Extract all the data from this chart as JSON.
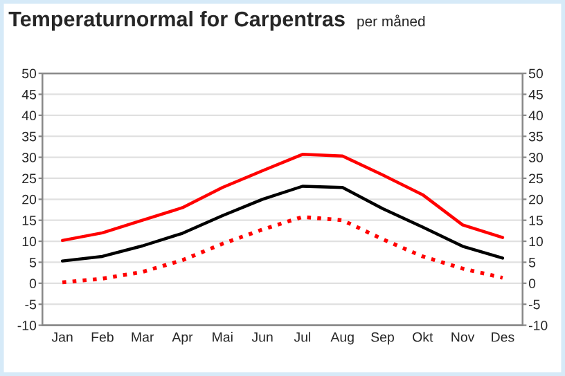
{
  "chart_data": {
    "type": "line",
    "title": "Temperaturnormal for Carpentras",
    "subtitle": "per måned",
    "categories": [
      "Jan",
      "Feb",
      "Mar",
      "Apr",
      "Mai",
      "Jun",
      "Jul",
      "Aug",
      "Sep",
      "Okt",
      "Nov",
      "Des"
    ],
    "series": [
      {
        "color": "#ff0000",
        "line_style": "solid",
        "values": [
          10.2,
          12.0,
          15.0,
          18.0,
          22.8,
          26.8,
          30.7,
          30.3,
          25.8,
          21.1,
          13.9,
          10.9
        ]
      },
      {
        "color": "#000000",
        "line_style": "solid",
        "values": [
          5.3,
          6.4,
          8.9,
          11.9,
          16.1,
          20.0,
          23.1,
          22.8,
          17.8,
          13.4,
          8.8,
          6.0
        ]
      },
      {
        "color": "#ff0000",
        "line_style": "dotted",
        "values": [
          0.2,
          1.1,
          2.7,
          5.5,
          9.4,
          12.8,
          15.8,
          15.0,
          10.5,
          6.4,
          3.5,
          1.3
        ]
      }
    ],
    "ylim": [
      -10,
      50
    ],
    "yticks": [
      -10,
      -5,
      0,
      5,
      10,
      15,
      20,
      25,
      30,
      35,
      40,
      45,
      50
    ],
    "y2lim": [
      -10,
      50
    ],
    "y2ticks": [
      -10,
      -5,
      0,
      5,
      10,
      15,
      20,
      25,
      30,
      35,
      40,
      45,
      50
    ],
    "grid": true,
    "marker": "none"
  }
}
